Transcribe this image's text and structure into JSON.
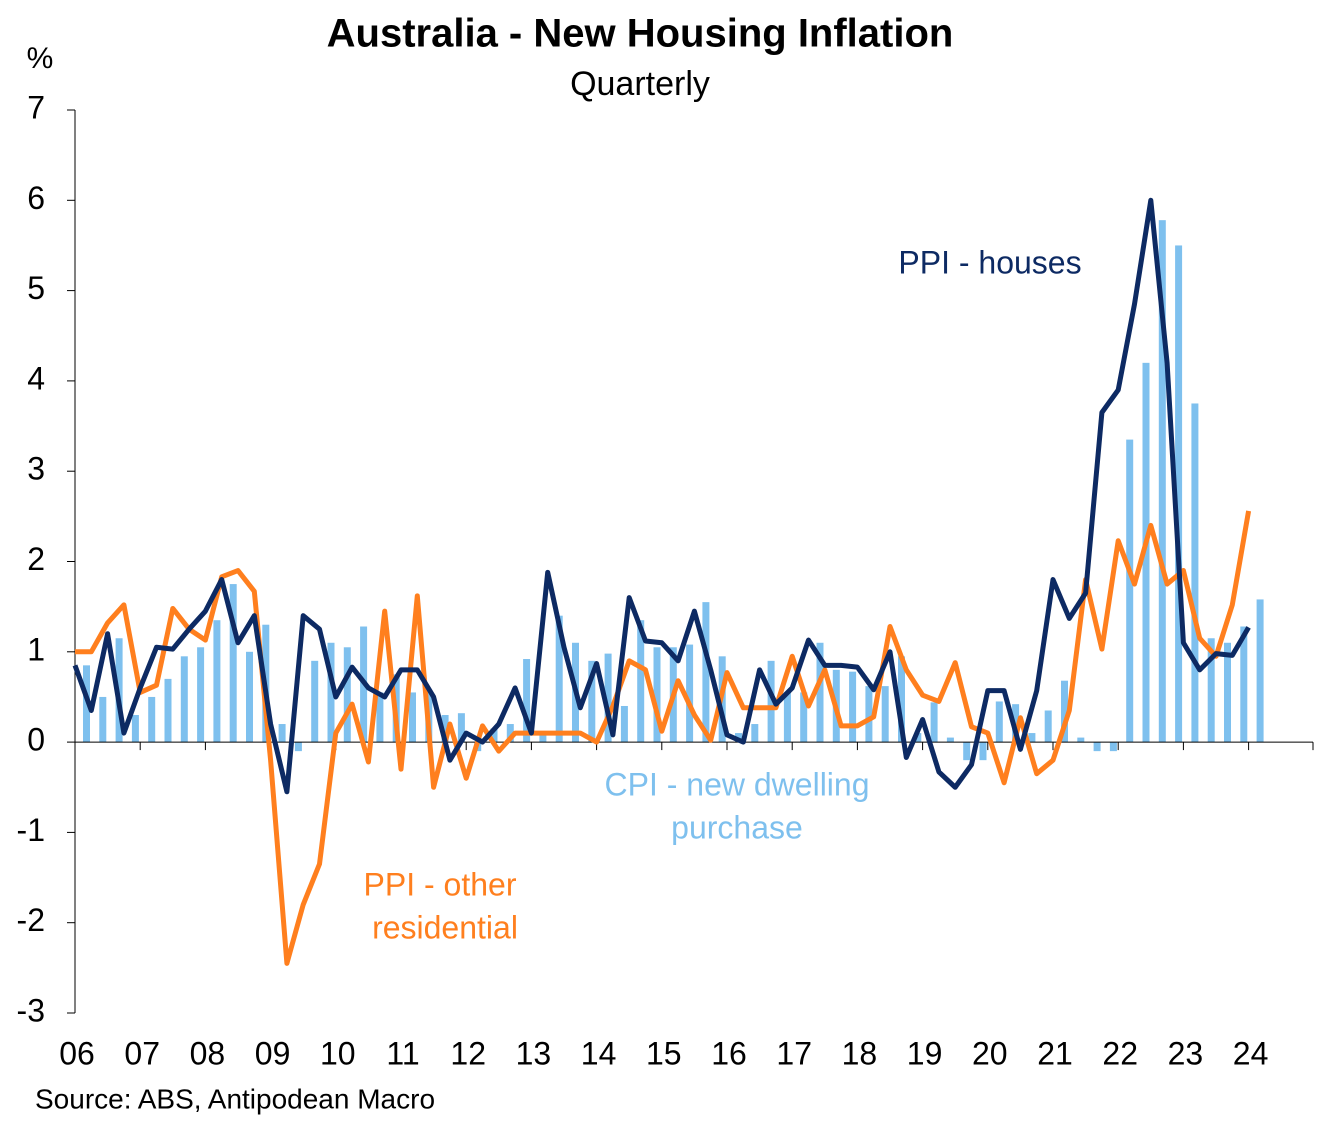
{
  "chart_data": {
    "type": "combo",
    "title": "Australia - New Housing Inflation",
    "subtitle": "Quarterly",
    "y_label": "%",
    "source": "Source: ABS, Antipodean Macro",
    "categories": [
      "06",
      null,
      null,
      null,
      "07",
      null,
      null,
      null,
      "08",
      null,
      null,
      null,
      "09",
      null,
      null,
      null,
      "10",
      null,
      null,
      null,
      "11",
      null,
      null,
      null,
      "12",
      null,
      null,
      null,
      "13",
      null,
      null,
      null,
      "14",
      null,
      null,
      null,
      "15",
      null,
      null,
      null,
      "16",
      null,
      null,
      null,
      "17",
      null,
      null,
      null,
      "18",
      null,
      null,
      null,
      "19",
      null,
      null,
      null,
      "20",
      null,
      null,
      null,
      "21",
      null,
      null,
      null,
      "22",
      null,
      null,
      null,
      "23",
      null,
      null,
      null,
      "24"
    ],
    "ylim": [
      -3,
      7
    ],
    "yticks": [
      -3,
      -2,
      -1,
      0,
      1,
      2,
      3,
      4,
      5,
      6,
      7
    ],
    "series": [
      {
        "type": "bar",
        "color": "#7ec0ee",
        "label": [
          "CPI - new dwelling",
          "purchase"
        ],
        "values": [
          0.85,
          0.5,
          1.15,
          0.3,
          0.5,
          0.7,
          0.95,
          1.05,
          1.35,
          1.75,
          1.0,
          1.3,
          0.2,
          -0.1,
          0.9,
          1.1,
          1.05,
          1.28,
          0.55,
          0.75,
          0.55,
          0.55,
          0.3,
          0.32,
          -0.1,
          0.15,
          0.2,
          0.92,
          0.1,
          1.4,
          1.1,
          0.9,
          0.98,
          0.4,
          1.35,
          1.05,
          1.05,
          1.08,
          1.55,
          0.95,
          0.1,
          0.2,
          0.9,
          0.55,
          0.55,
          1.1,
          0.8,
          0.78,
          0.62,
          0.62,
          0.95,
          0.1,
          0.44,
          0.05,
          -0.2,
          -0.2,
          0.45,
          0.42,
          0.1,
          0.35,
          0.68,
          0.05,
          -0.1,
          -0.1,
          3.35,
          4.2,
          5.78,
          5.5,
          3.75,
          1.15,
          1.1,
          1.28,
          1.58
        ]
      },
      {
        "type": "line",
        "color": "#ff7f1e",
        "label": [
          "PPI - other",
          "residential"
        ],
        "values": [
          1.0,
          1.0,
          1.32,
          1.52,
          0.55,
          0.63,
          1.48,
          1.25,
          1.13,
          1.83,
          1.9,
          1.67,
          -0.2,
          -2.45,
          -1.8,
          -1.35,
          0.1,
          0.42,
          -0.22,
          1.45,
          -0.3,
          1.62,
          -0.5,
          0.2,
          -0.4,
          0.18,
          -0.1,
          0.1,
          0.1,
          0.1,
          0.1,
          0.1,
          0.0,
          0.4,
          0.9,
          0.8,
          0.12,
          0.68,
          0.3,
          0.02,
          0.77,
          0.38,
          0.38,
          0.38,
          0.95,
          0.4,
          0.8,
          0.18,
          0.18,
          0.28,
          1.28,
          0.8,
          0.52,
          0.45,
          0.88,
          0.17,
          0.1,
          -0.45,
          0.27,
          -0.35,
          -0.2,
          0.35,
          1.8,
          1.03,
          2.23,
          1.75,
          2.4,
          1.75,
          1.9,
          1.15,
          0.95,
          1.52,
          2.56
        ]
      },
      {
        "type": "line",
        "color": "#0d2a63",
        "label": [
          "PPI - houses"
        ],
        "values": [
          0.85,
          0.35,
          1.2,
          0.1,
          0.6,
          1.05,
          1.03,
          1.25,
          1.45,
          1.8,
          1.1,
          1.4,
          0.2,
          -0.55,
          1.4,
          1.25,
          0.5,
          0.83,
          0.6,
          0.5,
          0.8,
          0.8,
          0.5,
          -0.2,
          0.1,
          0.0,
          0.2,
          0.6,
          0.1,
          1.88,
          1.05,
          0.38,
          0.87,
          0.08,
          1.6,
          1.12,
          1.1,
          0.9,
          1.45,
          0.8,
          0.08,
          0.0,
          0.8,
          0.42,
          0.6,
          1.13,
          0.85,
          0.85,
          0.83,
          0.58,
          1.0,
          -0.17,
          0.25,
          -0.33,
          -0.5,
          -0.25,
          0.57,
          0.57,
          -0.08,
          0.57,
          1.8,
          1.37,
          1.65,
          3.65,
          3.9,
          4.85,
          6.0,
          4.2,
          1.1,
          0.8,
          0.98,
          0.96,
          1.27
        ]
      }
    ]
  }
}
